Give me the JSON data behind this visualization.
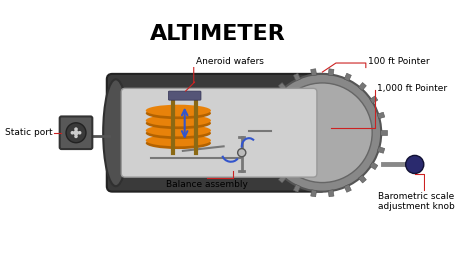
{
  "title": "ALTIMETER",
  "title_fontsize": 16,
  "title_fontweight": "bold",
  "labels": {
    "aneroid_wafers": "Aneroid wafers",
    "static_port": "Static port",
    "balance_assembly": "Balance assembly",
    "100ft_pointer": "100 ft Pointer",
    "1000ft_pointer": "1,000 ft Pointer",
    "barometric_knob": "Barometric scale\nadjustment knob"
  },
  "colors": {
    "background": "#ffffff",
    "cylinder_body": "#3a3a3a",
    "cylinder_left": "#505050",
    "interior_bg": "#d0d0d0",
    "wafer_fill": "#e8820a",
    "wafer_edge": "#b36200",
    "gear_body": "#888888",
    "gear_inner": "#aaaaaa",
    "gear_tooth": "#777777",
    "static_box": "#585858",
    "static_face": "#3a3a3a",
    "static_hole": "#cccccc",
    "knob_color": "#2a2a6e",
    "frame_color": "#8B6914",
    "linkage_color": "#777777",
    "arrow_blue": "#3355cc",
    "annotation_line": "#cc2222",
    "text_color": "#000000",
    "rod_color": "#888888",
    "win_border": "#999999"
  },
  "figsize": [
    4.55,
    2.8
  ],
  "dpi": 100
}
